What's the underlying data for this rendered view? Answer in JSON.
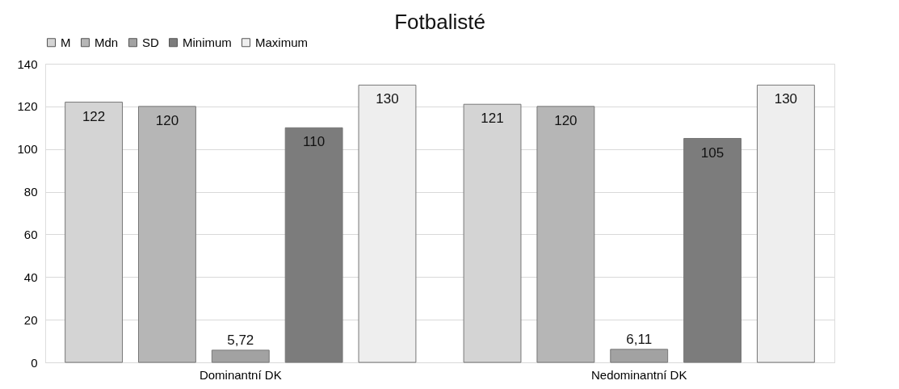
{
  "chart_data": {
    "type": "bar",
    "title": "Fotbalisté",
    "categories": [
      "Dominantní DK",
      "Nedominantní DK"
    ],
    "series": [
      {
        "name": "M",
        "color": "#d4d4d4",
        "values": [
          122,
          121
        ],
        "value_labels": [
          "122",
          "121"
        ]
      },
      {
        "name": "Mdn",
        "color": "#b6b6b6",
        "values": [
          120,
          120
        ],
        "value_labels": [
          "120",
          "120"
        ]
      },
      {
        "name": "SD",
        "color": "#a2a2a2",
        "values": [
          5.72,
          6.11
        ],
        "value_labels": [
          "5,72",
          "6,11"
        ]
      },
      {
        "name": "Minimum",
        "color": "#7c7c7c",
        "values": [
          110,
          105
        ],
        "value_labels": [
          "110",
          "105"
        ]
      },
      {
        "name": "Maximum",
        "color": "#eeeeee",
        "values": [
          130,
          130
        ],
        "value_labels": [
          "130",
          "130"
        ]
      }
    ],
    "ylim": [
      0,
      140
    ],
    "yticks": [
      0,
      20,
      40,
      60,
      80,
      100,
      120,
      140
    ],
    "grid": "y",
    "legend": "top"
  }
}
